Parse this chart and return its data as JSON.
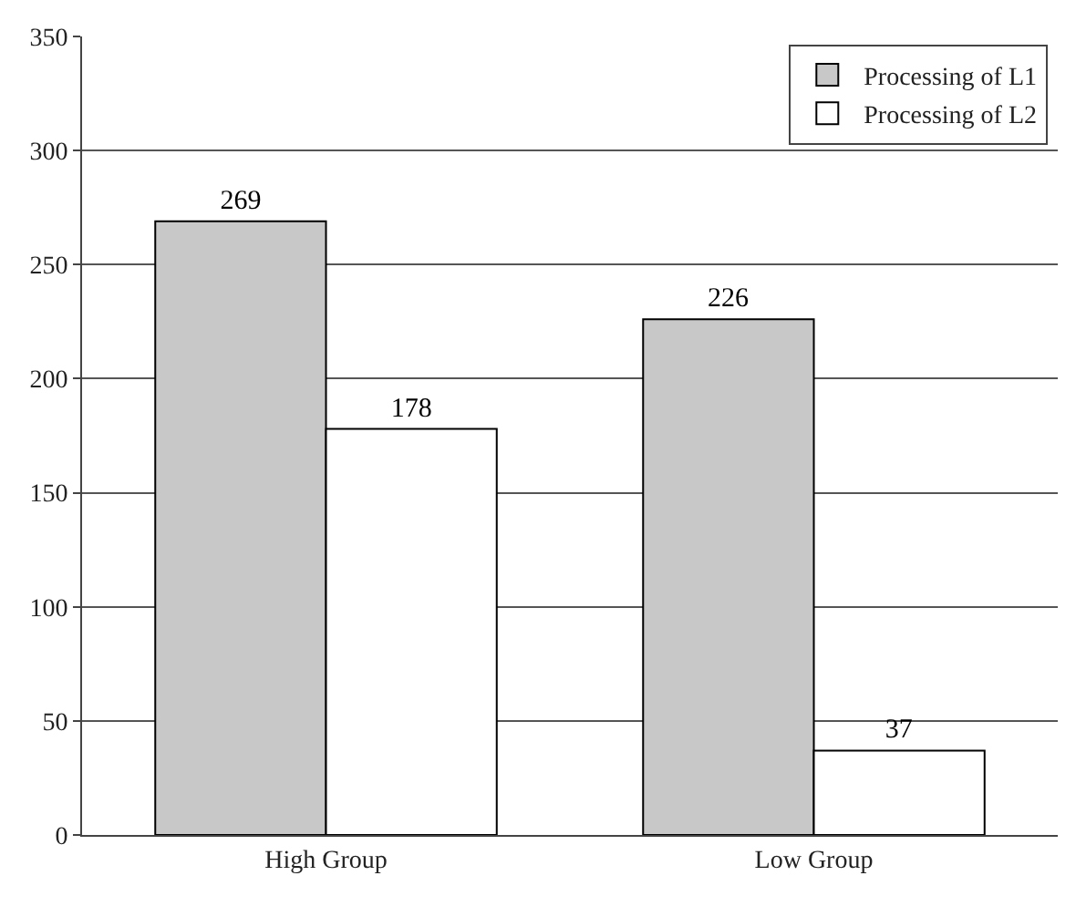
{
  "chart_data": {
    "type": "bar",
    "categories": [
      "High Group",
      "Low Group"
    ],
    "series": [
      {
        "name": "Processing of L1",
        "color": "#c8c8c8",
        "values": [
          269,
          226
        ]
      },
      {
        "name": "Processing of L2",
        "color": "#ffffff",
        "values": [
          178,
          37
        ]
      }
    ],
    "ylim": [
      0,
      350
    ],
    "yticks": [
      0,
      50,
      100,
      150,
      200,
      250,
      300,
      350
    ],
    "grid": "y",
    "legend": "top right",
    "data_labels": true
  }
}
